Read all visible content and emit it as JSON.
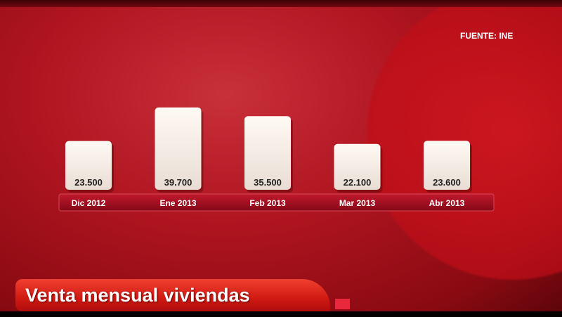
{
  "source": "FUENTE: INE",
  "title": "Venta mensual viviendas",
  "chart_data": {
    "type": "bar",
    "title": "Venta mensual viviendas",
    "categories": [
      "Dic 2012",
      "Ene 2013",
      "Feb 2013",
      "Mar 2013",
      "Abr 2013"
    ],
    "values": [
      23500,
      39700,
      35500,
      22100,
      23600
    ],
    "data_labels": [
      "23.500",
      "39.700",
      "35.500",
      "22.100",
      "23.600"
    ],
    "ylim": [
      0,
      40000
    ],
    "grid": false,
    "colors": {
      "bar": "#f8f0e8",
      "label_strip": "#a00c1e",
      "background": "#b01520"
    }
  }
}
